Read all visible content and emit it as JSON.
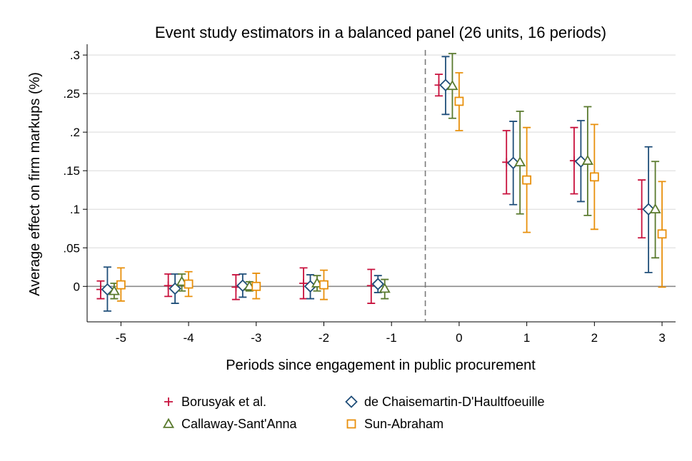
{
  "chart_data": {
    "type": "errorbar",
    "title": "Event study estimators in a balanced panel (26 units, 16 periods)",
    "xlabel": "Periods since engagement in public procurement",
    "ylabel": "Average effect on firm markups (%)",
    "x_ticks": [
      -5,
      -4,
      -3,
      -2,
      -1,
      0,
      1,
      2,
      3
    ],
    "x_tick_labels": [
      "-5",
      "-4",
      "-3",
      "-2",
      "-1",
      "0",
      "1",
      "2",
      "3"
    ],
    "y_ticks": [
      0,
      0.05,
      0.1,
      0.15,
      0.2,
      0.25,
      0.3
    ],
    "y_tick_labels": [
      "0",
      ".05",
      ".1",
      ".15",
      ".2",
      ".25",
      ".3"
    ],
    "xlim": [
      -5.5,
      3.2
    ],
    "ylim": [
      -0.046,
      0.314
    ],
    "grid": "horizontal",
    "reference_line_x": -0.5,
    "legend_position": "bottom",
    "series": [
      {
        "name": "Borusyak et al.",
        "marker": "plus",
        "color": "#c8103c",
        "x": [
          -5.3,
          -4.3,
          -3.3,
          -2.3,
          -1.3,
          -0.3,
          0.7,
          1.7,
          2.7
        ],
        "y": [
          -0.004,
          0.001,
          -0.001,
          0.004,
          0.001,
          0.261,
          0.161,
          0.163,
          0.1
        ],
        "lo": [
          -0.016,
          -0.013,
          -0.017,
          -0.016,
          -0.022,
          0.247,
          0.12,
          0.12,
          0.063
        ],
        "hi": [
          0.007,
          0.016,
          0.015,
          0.024,
          0.022,
          0.275,
          0.202,
          0.206,
          0.138
        ]
      },
      {
        "name": "de Chaisemartin-D'Haultfoeuille",
        "marker": "diamond",
        "color": "#1f4e79",
        "x": [
          -5.2,
          -4.2,
          -3.2,
          -2.2,
          -1.2,
          -0.2,
          0.8,
          1.8,
          2.8
        ],
        "y": [
          -0.004,
          -0.003,
          0.001,
          0.0,
          0.003,
          0.261,
          0.16,
          0.162,
          0.1
        ],
        "lo": [
          -0.032,
          -0.022,
          -0.014,
          -0.016,
          -0.008,
          0.223,
          0.106,
          0.11,
          0.018
        ],
        "hi": [
          0.025,
          0.016,
          0.016,
          0.015,
          0.014,
          0.298,
          0.214,
          0.215,
          0.181
        ]
      },
      {
        "name": "Callaway-Sant'Anna",
        "marker": "triangle",
        "color": "#5a7a2e",
        "x": [
          -5.1,
          -4.1,
          -3.1,
          -2.1,
          -1.1,
          -0.1,
          0.9,
          1.9,
          2.9
        ],
        "y": [
          -0.006,
          0.006,
          0.0,
          0.004,
          -0.003,
          0.26,
          0.161,
          0.163,
          0.1
        ],
        "lo": [
          -0.016,
          -0.006,
          -0.006,
          -0.006,
          -0.016,
          0.218,
          0.094,
          0.092,
          0.037
        ],
        "hi": [
          0.004,
          0.016,
          0.006,
          0.014,
          0.009,
          0.302,
          0.227,
          0.233,
          0.162
        ]
      },
      {
        "name": "Sun-Abraham",
        "marker": "square",
        "color": "#e8900c",
        "x": [
          -5.0,
          -4.0,
          -3.0,
          -2.0,
          -1.0,
          0.0,
          1.0,
          2.0,
          3.0
        ],
        "y": [
          0.002,
          0.003,
          0.0,
          0.002,
          null,
          0.24,
          0.138,
          0.142,
          0.068
        ],
        "lo": [
          -0.019,
          -0.013,
          -0.016,
          -0.017,
          null,
          0.202,
          0.07,
          0.074,
          -0.001
        ],
        "hi": [
          0.024,
          0.019,
          0.017,
          0.021,
          null,
          0.277,
          0.206,
          0.21,
          0.136
        ]
      }
    ]
  }
}
